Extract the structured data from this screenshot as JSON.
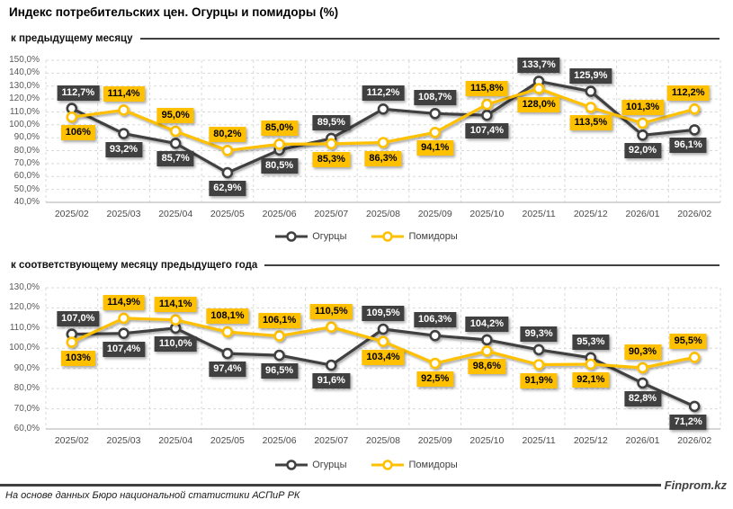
{
  "header": {
    "title": "Индекс потребительских цен. Огурцы и помидоры (%)"
  },
  "colors": {
    "cucumbers": "#404040",
    "tomatoes": "#FFC000",
    "grid": "#D9D9D9",
    "axis_line": "#BFBFBF",
    "axis_text": "#595959"
  },
  "legend": {
    "cucumbers": "Огурцы",
    "tomatoes": "Помидоры"
  },
  "footer": {
    "brand": "Finprom.kz",
    "source": "На основе данных Бюро национальной статистики АСПиР РК"
  },
  "chart_data": [
    {
      "type": "line",
      "title": "к предыдущему месяцу",
      "categories": [
        "2025/02",
        "2025/03",
        "2025/04",
        "2025/05",
        "2025/06",
        "2025/07",
        "2025/08",
        "2025/09",
        "2025/10",
        "2025/11",
        "2025/12",
        "2026/01",
        "2026/02"
      ],
      "series": [
        {
          "name": "Огурцы",
          "color": "#404040",
          "values": [
            112.7,
            93.2,
            85.7,
            62.9,
            80.5,
            89.5,
            112.2,
            108.7,
            107.4,
            133.7,
            125.9,
            92.0,
            96.1
          ],
          "labels": [
            "112,7%",
            "93,2%",
            "85,7%",
            "62,9%",
            "80,5%",
            "89,5%",
            "112,2%",
            "108,7%",
            "107,4%",
            "133,7%",
            "125,9%",
            "92,0%",
            "96,1%"
          ]
        },
        {
          "name": "Помидоры",
          "color": "#FFC000",
          "values": [
            106,
            111.4,
            95.0,
            80.2,
            85.0,
            85.3,
            86.3,
            94.1,
            115.8,
            128.0,
            113.5,
            101.3,
            112.2
          ],
          "labels": [
            "106%",
            "111,4%",
            "95,0%",
            "80,2%",
            "85,0%",
            "85,3%",
            "86,3%",
            "94,1%",
            "115,8%",
            "128,0%",
            "113,5%",
            "101,3%",
            "112,2%"
          ]
        }
      ],
      "ylim": [
        40,
        150
      ],
      "ytick_step": 10,
      "ytick_labels": [
        "150,0%",
        "140,0%",
        "130,0%",
        "120,0%",
        "110,0%",
        "100,0%",
        "90,0%",
        "80,0%",
        "70,0%",
        "60,0%",
        "50,0%",
        "40,0%"
      ],
      "grid": "dashed horizontal and vertical",
      "legend_position": "bottom"
    },
    {
      "type": "line",
      "title": "к соответствующему месяцу предыдущего года",
      "categories": [
        "2025/02",
        "2025/03",
        "2025/04",
        "2025/05",
        "2025/06",
        "2025/07",
        "2025/08",
        "2025/09",
        "2025/10",
        "2025/11",
        "2025/12",
        "2026/01",
        "2026/02"
      ],
      "series": [
        {
          "name": "Огурцы",
          "color": "#404040",
          "values": [
            107.0,
            107.4,
            110.0,
            97.4,
            96.5,
            91.6,
            109.5,
            106.3,
            104.2,
            99.3,
            95.3,
            82.8,
            71.2
          ],
          "labels": [
            "107,0%",
            "107,4%",
            "110,0%",
            "97,4%",
            "96,5%",
            "91,6%",
            "109,5%",
            "106,3%",
            "104,2%",
            "99,3%",
            "95,3%",
            "82,8%",
            "71,2%"
          ]
        },
        {
          "name": "Помидоры",
          "color": "#FFC000",
          "values": [
            103,
            114.9,
            114.1,
            108.1,
            106.1,
            110.5,
            103.4,
            92.5,
            98.6,
            91.9,
            92.1,
            90.3,
            95.5
          ],
          "labels": [
            "103%",
            "114,9%",
            "114,1%",
            "108,1%",
            "106,1%",
            "110,5%",
            "103,4%",
            "92,5%",
            "98,6%",
            "91,9%",
            "92,1%",
            "90,3%",
            "95,5%"
          ]
        }
      ],
      "ylim": [
        60,
        130
      ],
      "ytick_step": 10,
      "ytick_labels": [
        "130,0%",
        "120,0%",
        "110,0%",
        "100,0%",
        "90,0%",
        "80,0%",
        "70,0%",
        "60,0%"
      ],
      "grid": "dashed horizontal and vertical",
      "legend_position": "bottom"
    }
  ]
}
